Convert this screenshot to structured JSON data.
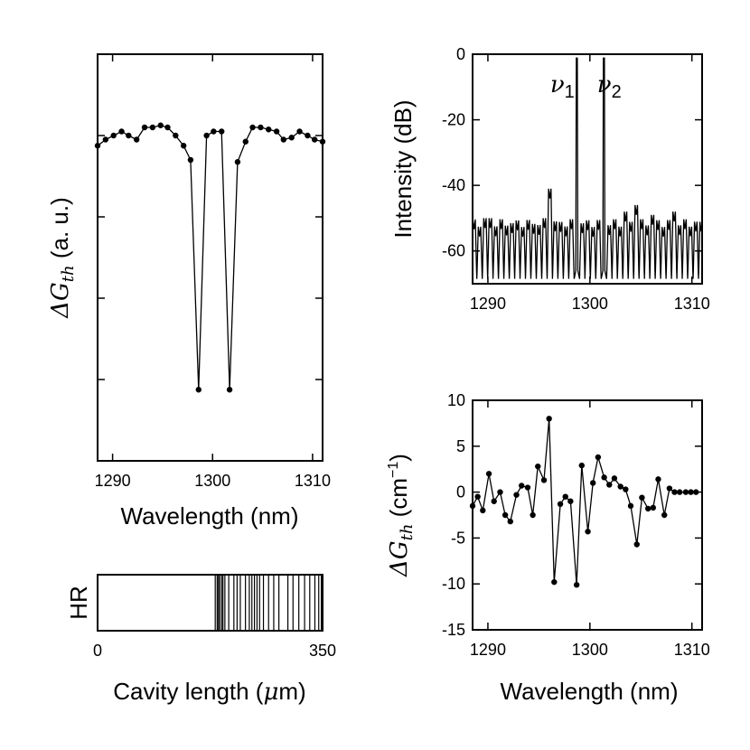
{
  "chart_data": [
    {
      "id": "threshold",
      "type": "line",
      "xlabel": "Wavelength (nm)",
      "ylabel_symbol": "ΔG",
      "ylabel_sub": "th",
      "ylabel_unit": " (a. u.)",
      "xlim": [
        1288.5,
        1311
      ],
      "ylim": [
        0,
        1
      ],
      "xticks": [
        1290,
        1300,
        1310
      ],
      "ytick_values": [
        0.2,
        0.4,
        0.6,
        0.8
      ],
      "show_yticklabels": false,
      "x": [
        1288.5,
        1289.3,
        1290.1,
        1290.9,
        1291.6,
        1292.4,
        1293.2,
        1294.0,
        1294.8,
        1295.5,
        1296.3,
        1297.1,
        1297.8,
        1298.6,
        1299.4,
        1300.1,
        1300.9,
        1301.7,
        1302.5,
        1303.3,
        1304.0,
        1304.8,
        1305.6,
        1306.4,
        1307.1,
        1307.9,
        1308.7,
        1309.5,
        1310.2,
        1311.0
      ],
      "y": [
        0.775,
        0.79,
        0.8,
        0.81,
        0.8,
        0.79,
        0.82,
        0.82,
        0.825,
        0.82,
        0.8,
        0.775,
        0.74,
        0.175,
        0.8,
        0.81,
        0.81,
        0.175,
        0.735,
        0.785,
        0.82,
        0.82,
        0.815,
        0.81,
        0.79,
        0.795,
        0.81,
        0.8,
        0.79,
        0.785
      ]
    },
    {
      "id": "spectrum",
      "type": "line",
      "xlabel": "",
      "ylabel": "Intensity (dB)",
      "xlim": [
        1288.5,
        1311
      ],
      "ylim": [
        -70,
        0
      ],
      "xticks": [
        1290,
        1300,
        1310
      ],
      "yticks": [
        0,
        -20,
        -40,
        -60
      ],
      "annotations": [
        {
          "symbol": "ν",
          "sub": "1",
          "x": 1297.3,
          "y": -6
        },
        {
          "symbol": "ν",
          "sub": "2",
          "x": 1301.9,
          "y": -6
        }
      ],
      "mode_spacing_nm": 0.53,
      "floor_db": -69,
      "peaks": [
        {
          "x": 1298.9,
          "y": -4
        },
        {
          "x": 1301.6,
          "y": -4
        },
        {
          "x": 1296.3,
          "y": -44
        },
        {
          "x": 1295.5,
          "y": -53
        },
        {
          "x": 1304.3,
          "y": -49
        },
        {
          "x": 1303.7,
          "y": -51
        },
        {
          "x": 1308.2,
          "y": -51
        },
        {
          "x": 1306.1,
          "y": -52
        },
        {
          "x": 1289.5,
          "y": -53
        },
        {
          "x": 1290.3,
          "y": -53
        }
      ],
      "default_peak_db": -54.5
    },
    {
      "id": "gain-diff",
      "type": "line",
      "xlabel": "Wavelength (nm)",
      "ylabel_symbol": "ΔG",
      "ylabel_sub": "th",
      "ylabel_unit": " (cm",
      "ylabel_sup": "−1",
      "ylabel_close": ")",
      "xlim": [
        1288.5,
        1311
      ],
      "ylim": [
        -15,
        10
      ],
      "xticks": [
        1290,
        1300,
        1310
      ],
      "yticks": [
        10,
        5,
        0,
        -5,
        -10,
        -15
      ],
      "x": [
        1288.5,
        1289.0,
        1289.5,
        1290.1,
        1290.6,
        1291.2,
        1291.7,
        1292.2,
        1292.8,
        1293.3,
        1293.9,
        1294.4,
        1294.9,
        1295.5,
        1296.0,
        1296.5,
        1297.1,
        1297.6,
        1298.1,
        1298.7,
        1299.2,
        1299.8,
        1300.3,
        1300.8,
        1301.4,
        1301.9,
        1302.4,
        1303.0,
        1303.5,
        1304.0,
        1304.6,
        1305.1,
        1305.7,
        1306.2,
        1306.7,
        1307.3,
        1307.8,
        1308.3,
        1308.8,
        1309.4,
        1309.9,
        1310.4,
        1311.0
      ],
      "y": [
        -1.5,
        -0.5,
        -2,
        2,
        -1,
        0,
        -2.5,
        -3.2,
        -0.3,
        0.7,
        0.5,
        -2.5,
        2.8,
        1.3,
        8,
        -9.8,
        -1.3,
        -0.5,
        -1,
        -10.1,
        2.9,
        -4.3,
        1,
        3.8,
        1.6,
        0.8,
        1.5,
        0.6,
        0.3,
        -1.5,
        -5.7,
        -0.6,
        -1.8,
        -1.7,
        1.4,
        -2.5,
        0.4,
        0,
        0,
        0,
        0,
        0,
        0
      ]
    },
    {
      "id": "cavity",
      "type": "bar",
      "ylabel": "HR",
      "xlabel_prefix": "Cavity length (",
      "xlabel_mu": "μ",
      "xlabel_suffix": "m)",
      "xlim": [
        0,
        350
      ],
      "xticks": [
        0,
        350
      ],
      "line_positions": [
        183,
        186,
        188,
        190,
        193,
        195,
        198,
        204,
        212,
        217,
        222,
        230,
        236,
        240,
        244,
        248,
        252,
        258,
        266,
        274,
        282,
        296,
        304,
        313,
        322,
        330,
        338,
        344,
        348
      ]
    }
  ]
}
